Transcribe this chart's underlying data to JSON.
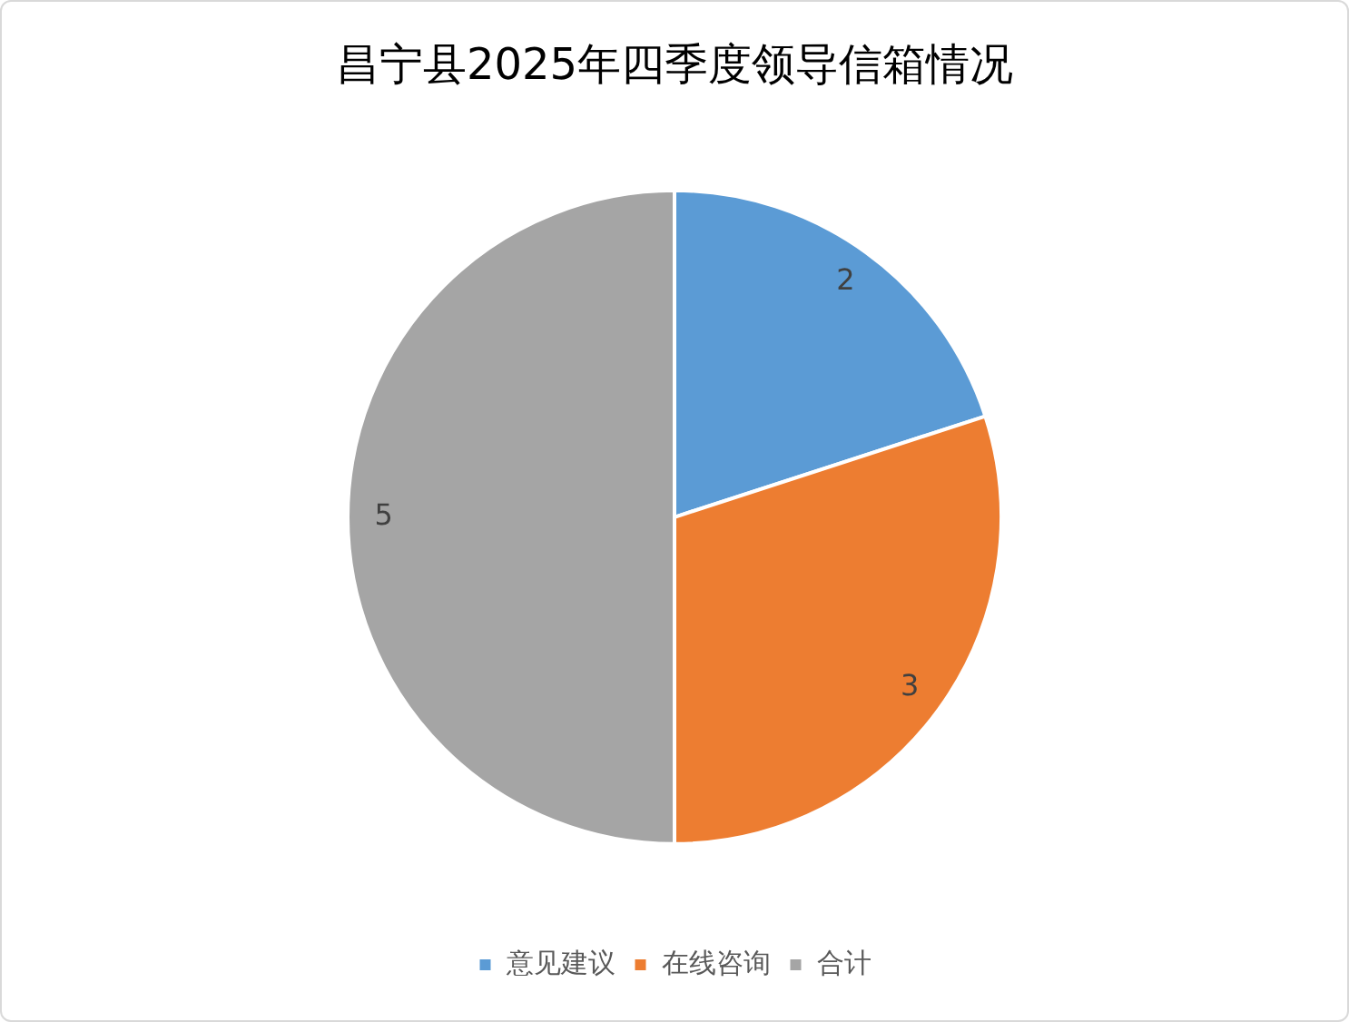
{
  "chart_data": {
    "type": "pie",
    "title": "昌宁县2025年四季度领导信箱情况",
    "categories": [
      "意见建议",
      "在线咨询",
      "合计"
    ],
    "values": [
      2,
      3,
      5
    ],
    "colors": [
      "#5b9bd5",
      "#ed7d31",
      "#a5a5a5"
    ],
    "data_labels": true,
    "legend": "bottom"
  }
}
